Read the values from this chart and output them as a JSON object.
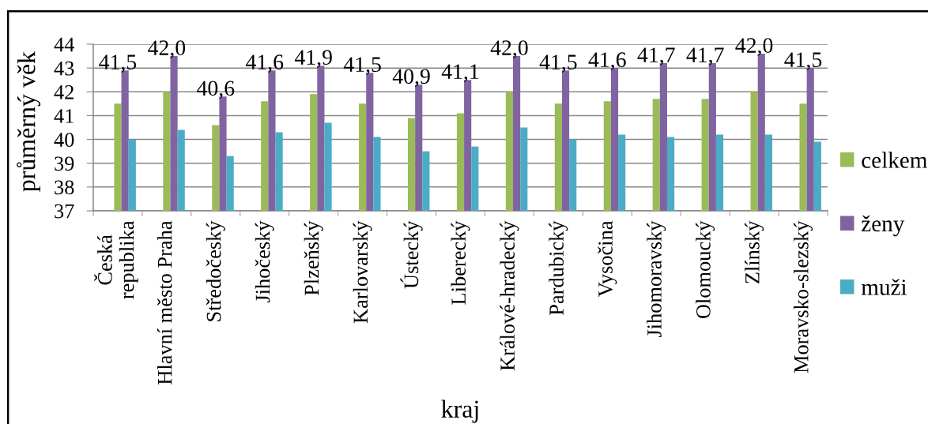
{
  "chart_data": {
    "type": "bar",
    "xlabel": "kraj",
    "ylabel": "průměrný věk",
    "categories": [
      "Česká\nrepublika",
      "Hlavní město Praha",
      "Středočeský",
      "Jihočeský",
      "Plzeňský",
      "Karlovarský",
      "Ústecký",
      "Liberecký",
      "Králové-hradecký",
      "Pardubický",
      "Vysočina",
      "Jihomoravský",
      "Olomoucký",
      "Zlínský",
      "Moravsko-slezský"
    ],
    "series": [
      {
        "name": "celkem",
        "color": "#9bbb59",
        "values": [
          41.5,
          42.0,
          40.6,
          41.6,
          41.9,
          41.5,
          40.9,
          41.1,
          42.0,
          41.5,
          41.6,
          41.7,
          41.7,
          42.0,
          41.5
        ],
        "value_labels": [
          "41,5",
          "42,0",
          "40,6",
          "41,6",
          "41,9",
          "41,5",
          "40,9",
          "41,1",
          "42,0",
          "41,5",
          "41,6",
          "41,7",
          "41,7",
          "42,0",
          "41,5"
        ]
      },
      {
        "name": "ženy",
        "color": "#8064a2",
        "values": [
          42.9,
          43.5,
          41.8,
          42.9,
          43.1,
          42.8,
          42.3,
          42.5,
          43.5,
          42.9,
          43.0,
          43.2,
          43.2,
          43.6,
          43.0
        ]
      },
      {
        "name": "muži",
        "color": "#4bacc6",
        "values": [
          40.0,
          40.4,
          39.3,
          40.3,
          40.7,
          40.1,
          39.5,
          39.7,
          40.5,
          40.0,
          40.2,
          40.1,
          40.2,
          40.2,
          39.9
        ]
      }
    ],
    "ylim": [
      37,
      44
    ],
    "yticks": [
      37,
      38,
      39,
      40,
      41,
      42,
      43,
      44
    ],
    "grid": "y",
    "legend": "right"
  }
}
